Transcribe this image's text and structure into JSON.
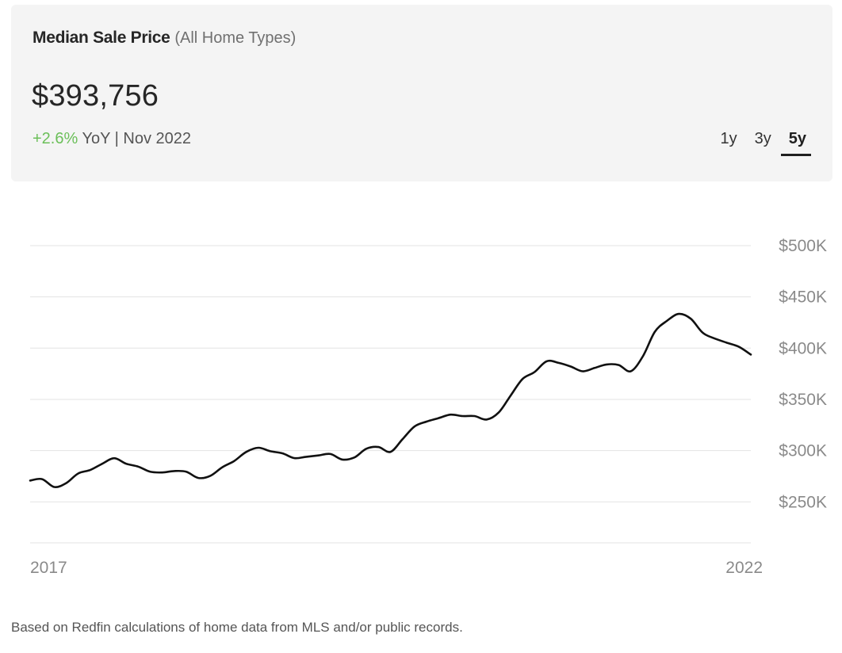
{
  "header": {
    "title": "Median Sale Price",
    "subtitle": "(All Home Types)",
    "price": "$393,756",
    "change_pct": "+2.6%",
    "change_suffix": "YoY | Nov 2022",
    "accent_color": "#6bbf59"
  },
  "range_tabs": [
    {
      "label": "1y",
      "active": false
    },
    {
      "label": "3y",
      "active": false
    },
    {
      "label": "5y",
      "active": true
    }
  ],
  "chart_data": {
    "type": "line",
    "title": "",
    "xlabel": "",
    "ylabel": "",
    "ylim": [
      210000,
      500000
    ],
    "y_ticks": [
      250000,
      300000,
      350000,
      400000,
      450000,
      500000
    ],
    "y_tick_labels": [
      "$250K",
      "$300K",
      "$350K",
      "$400K",
      "$450K",
      "$500K"
    ],
    "x_tick_labels": [
      "2017",
      "2022"
    ],
    "grid": true,
    "line_color": "#111111",
    "series": [
      {
        "values": [
          270800,
          272200,
          264500,
          268300,
          277700,
          281100,
          287200,
          292600,
          287200,
          284400,
          279400,
          278700,
          280100,
          279400,
          273300,
          275400,
          283800,
          290000,
          298800,
          302800,
          299400,
          297400,
          292700,
          294000,
          295300,
          296700,
          291300,
          293400,
          301900,
          303500,
          298800,
          311100,
          323500,
          328300,
          331700,
          335100,
          333700,
          333700,
          330300,
          337100,
          353700,
          369900,
          376700,
          387200,
          385600,
          382100,
          377400,
          380700,
          384100,
          383500,
          377400,
          391700,
          415800,
          426500,
          433400,
          428700,
          415000,
          409400,
          405300,
          401300,
          393756
        ]
      }
    ]
  },
  "footnote": "Based on Redfin calculations of home data from MLS and/or public records."
}
